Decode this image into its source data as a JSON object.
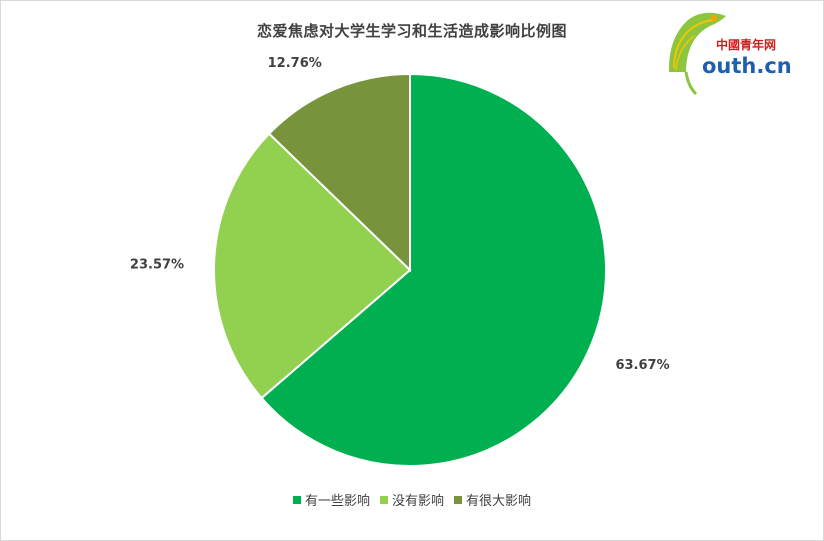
{
  "chart_data": {
    "type": "pie",
    "title": "恋爱焦虑对大学生学习和生活造成影响比例图",
    "categories": [
      "有一些影响",
      "没有影响",
      "有很大影响"
    ],
    "values": [
      63.67,
      23.57,
      12.76
    ],
    "labels": [
      "63.67%",
      "23.57%",
      "12.76%"
    ],
    "colors": [
      "#00b050",
      "#92d050",
      "#77933c"
    ],
    "start_angle_deg": 0,
    "direction": "clockwise",
    "legend_position": "bottom"
  },
  "logo": {
    "cn_text": "中國青年网",
    "en_text": "outh.cn"
  }
}
